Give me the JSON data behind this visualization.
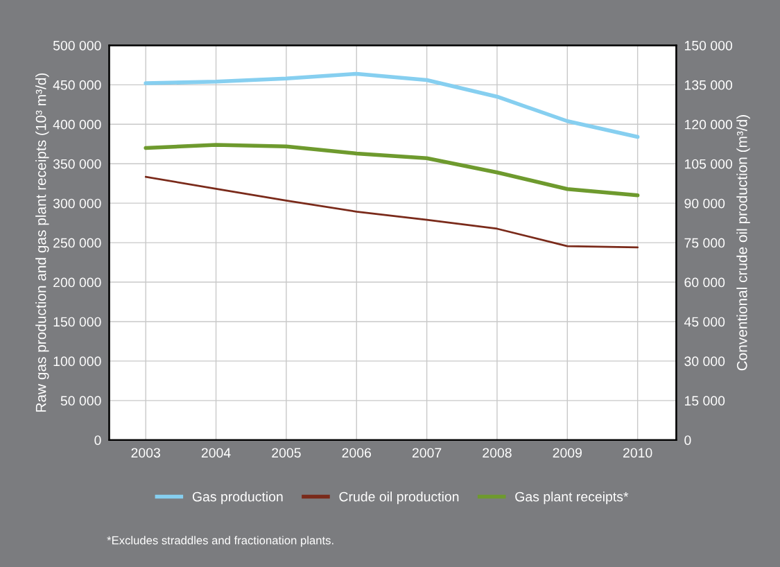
{
  "chart_data": {
    "type": "line",
    "categories": [
      "2003",
      "2004",
      "2005",
      "2006",
      "2007",
      "2008",
      "2009",
      "2010"
    ],
    "ylabel": "Raw gas production and gas plant receipts (10³ m³/d)",
    "y2label": "Conventional crude oil production (m³/d)",
    "ylim": [
      0,
      500000
    ],
    "yticks": [
      {
        "value": 0,
        "label": "0"
      },
      {
        "value": 50000,
        "label": "50 000"
      },
      {
        "value": 100000,
        "label": "100 000"
      },
      {
        "value": 150000,
        "label": "150 000"
      },
      {
        "value": 200000,
        "label": "200 000"
      },
      {
        "value": 250000,
        "label": "250 000"
      },
      {
        "value": 300000,
        "label": "300 000"
      },
      {
        "value": 350000,
        "label": "350 000"
      },
      {
        "value": 400000,
        "label": "400 000"
      },
      {
        "value": 450000,
        "label": "450 000"
      },
      {
        "value": 500000,
        "label": "500 000"
      }
    ],
    "y2lim": [
      0,
      150000
    ],
    "y2ticks": [
      {
        "value": 0,
        "label": "0"
      },
      {
        "value": 15000,
        "label": "15 000"
      },
      {
        "value": 30000,
        "label": "30 000"
      },
      {
        "value": 45000,
        "label": "45 000"
      },
      {
        "value": 60000,
        "label": "60 000"
      },
      {
        "value": 75000,
        "label": "75 000"
      },
      {
        "value": 90000,
        "label": "90 000"
      },
      {
        "value": 105000,
        "label": "105 000"
      },
      {
        "value": 120000,
        "label": "120 000"
      },
      {
        "value": 135000,
        "label": "135 000"
      },
      {
        "value": 150000,
        "label": "150 000"
      }
    ],
    "series": [
      {
        "name": "Gas production",
        "color": "#86cff0",
        "values": [
          452000,
          454000,
          458000,
          464000,
          456000,
          435000,
          404000,
          384000
        ]
      },
      {
        "name": "Crude oil production",
        "color": "#7a2a1a",
        "axis": "y2",
        "values": [
          100000,
          95500,
          91000,
          86800,
          83700,
          80300,
          73700,
          73200
        ]
      },
      {
        "name": "Gas plant receipts*",
        "color": "#6e9a2e",
        "values": [
          370000,
          374000,
          372000,
          363000,
          357000,
          339000,
          318000,
          310000
        ]
      }
    ],
    "grid": true,
    "legend": "bottom",
    "marker": "none",
    "line_style": "solid",
    "annotations": [
      "*Excludes straddles and fractionation plants."
    ]
  }
}
